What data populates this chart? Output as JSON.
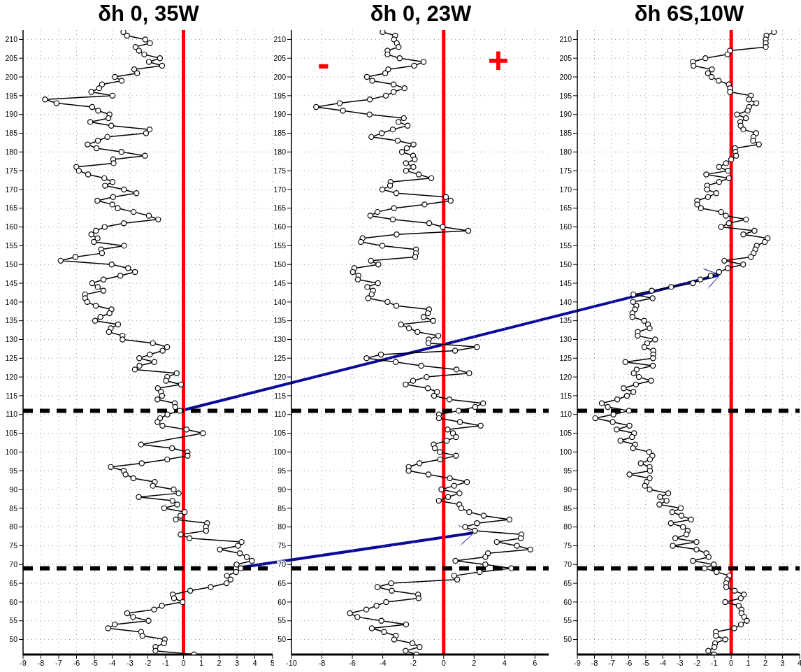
{
  "chart_data": [
    {
      "type": "line",
      "title": "δh 0, 35W",
      "xlim": [
        -9,
        5
      ],
      "xticks": [
        -9,
        -8,
        -7,
        -6,
        -5,
        -4,
        -3,
        -2,
        -1,
        0,
        1,
        2,
        3,
        4,
        5
      ],
      "ylim": [
        46,
        212.5
      ],
      "yticks": [
        50,
        55,
        60,
        65,
        70,
        75,
        80,
        85,
        90,
        95,
        100,
        105,
        110,
        115,
        120,
        125,
        130,
        135,
        140,
        145,
        150,
        155,
        160,
        165,
        170,
        175,
        180,
        185,
        190,
        195,
        200,
        205,
        210
      ],
      "grid": true,
      "marker": "circle",
      "ref_lines": [
        {
          "axis": "x",
          "value": 0,
          "color": "#ff0000"
        },
        {
          "axis": "y",
          "value": 111,
          "color": "#000000",
          "line_style": "dashed"
        },
        {
          "axis": "y",
          "value": 69,
          "color": "#000000",
          "line_style": "dashed"
        }
      ],
      "series": [
        {
          "color": "#000000",
          "x": [
            -3.37,
            -3.17,
            -2.14,
            -1.88,
            -2.69,
            -2.5,
            -2.2,
            -1.32,
            -1.94,
            -1.2,
            -2.76,
            -2.6,
            -3.85,
            -3.47,
            -4.57,
            -4.73,
            -5.17,
            -3.98,
            -7.77,
            -7.12,
            -5.12,
            -4.79,
            -4.15,
            -4.21,
            -5.23,
            -4.05,
            -1.9,
            -2.1,
            -4.27,
            -4.8,
            -5.38,
            -4.88,
            -3.48,
            -2.16,
            -3.94,
            -3.92,
            -6.01,
            -5.87,
            -5.35,
            -4.44,
            -3.98,
            -4.4,
            -3.34,
            -2.64,
            -3.95,
            -4.83,
            -3.99,
            -3.69,
            -2.8,
            -1.94,
            -1.42,
            -3.35,
            -4.42,
            -4.91,
            -5.17,
            -4.82,
            -5.03,
            -3.33,
            -4.62,
            -4.57,
            -6.06,
            -6.89,
            -4.03,
            -3.11,
            -2.72,
            -3.54,
            -4.49,
            -5.12,
            -4.81,
            -4.49,
            -5.52,
            -5.51,
            -5.4,
            -4.92,
            -4.04,
            -4.15,
            -4.66,
            -4.96,
            -3.67,
            -4.08,
            -4.18,
            -3.42,
            -3.42,
            -1.72,
            -0.92,
            -1.17,
            -1.89,
            -2.48,
            -1.63,
            -2.47,
            -2.73,
            -0.38,
            -0.91,
            -0.98,
            -0.14,
            -1.44,
            -1.26,
            -1.2,
            -1.46,
            -0.49,
            -0.46,
            -0.2,
            -0.9,
            -1.31,
            -1.46,
            -1.18,
            0.17,
            1.09,
            null,
            -2.38,
            -0.64,
            0.23,
            0.23,
            -0.91,
            -2.34,
            -4.08,
            -3.35,
            -3.25,
            -2.81,
            -1.61,
            -1.72,
            -0.55,
            -0.27,
            -2.51,
            -0.62,
            -0.35,
            -1.08,
            0.07,
            -0.17,
            -0.43,
            1.33,
            1.26,
            1.27,
            -0.16,
            0.34,
            3.26,
            3.06,
            2.04,
            3.16,
            3.55,
            3.84,
            2.98,
            3.22,
            2.95,
            2.44,
            2.64,
            2.42,
            1.53,
            0.38,
            -0.6,
            -0.53,
            -0.05,
            -1.21,
            -1.65,
            -3.16,
            -2.83,
            -1.96,
            -3.86,
            -4.23,
            -2.38,
            -2.3,
            -1.05,
            -1.09,
            -1.57,
            -1.57,
            0.59
          ],
          "values": [
            212,
            211,
            210,
            209,
            208,
            207,
            206,
            205,
            204,
            203,
            202,
            201,
            200,
            199,
            198,
            197,
            196,
            195,
            194,
            193,
            192,
            191,
            190,
            189,
            188,
            187,
            186,
            185,
            184,
            183,
            182,
            181,
            180,
            179,
            178,
            177,
            176,
            175,
            174,
            173,
            172,
            171,
            170,
            169,
            168,
            167,
            166,
            165,
            164,
            163,
            162,
            161,
            160,
            159,
            158,
            157,
            156,
            155,
            154,
            153,
            152,
            151,
            150,
            149,
            148,
            147,
            146,
            145,
            144,
            143,
            142,
            141,
            140,
            139,
            138,
            137,
            136,
            135,
            134,
            133,
            132,
            131,
            130,
            129,
            128,
            127,
            126,
            125,
            124,
            123,
            122,
            121,
            120,
            119,
            118,
            117,
            116,
            115,
            114,
            113,
            112,
            111,
            110,
            109,
            108,
            107,
            106,
            105,
            null,
            102,
            101,
            100,
            99,
            98,
            97,
            96,
            95,
            94,
            93,
            92,
            91,
            90,
            89,
            88,
            87,
            86,
            85,
            84,
            83,
            82,
            81,
            80,
            79,
            78,
            77,
            76,
            75,
            74,
            73,
            72,
            71,
            70,
            69,
            68,
            67,
            66,
            65,
            64,
            63,
            62,
            61,
            60,
            59,
            58,
            57,
            56,
            55,
            54,
            53,
            52,
            51,
            50,
            49,
            48,
            47,
            46
          ]
        }
      ]
    },
    {
      "type": "line",
      "title": "δh 0, 23W",
      "xlim": [
        -10,
        6.9
      ],
      "xticks": [
        -10,
        -8,
        -6,
        -4,
        -2,
        0,
        2,
        4,
        6
      ],
      "ylim": [
        46,
        212.5
      ],
      "yticks": [
        50,
        55,
        60,
        65,
        70,
        75,
        80,
        85,
        90,
        95,
        100,
        105,
        110,
        115,
        120,
        125,
        130,
        135,
        140,
        145,
        150,
        155,
        160,
        165,
        170,
        175,
        180,
        185,
        190,
        195,
        200,
        205,
        210
      ],
      "grid": true,
      "marker": "circle",
      "annotations": [
        "-",
        "+"
      ],
      "ref_lines": [
        {
          "axis": "x",
          "value": 0,
          "color": "#ff0000"
        },
        {
          "axis": "y",
          "value": 111,
          "color": "#000000",
          "line_style": "dashed"
        },
        {
          "axis": "y",
          "value": 69,
          "color": "#000000",
          "line_style": "dashed"
        }
      ],
      "series": [
        {
          "color": "#000000",
          "x": [
            -4.01,
            -3.19,
            -3.26,
            -3.08,
            -2.96,
            -3.69,
            -3.69,
            -2.89,
            -1.32,
            -1.94,
            -3.64,
            -3.84,
            -5.04,
            -4.69,
            -3.29,
            -2.57,
            -3.29,
            -3.8,
            -4.85,
            -6.83,
            -8.38,
            -6.62,
            -4.87,
            -2.62,
            -2.97,
            -2.37,
            -3.34,
            -4.07,
            -4.75,
            -3.02,
            -1.98,
            -2.42,
            -2.74,
            -2.01,
            -1.9,
            -2.48,
            -1.99,
            -2.47,
            -1.64,
            -0.81,
            -3.49,
            -3.52,
            -4.03,
            -3.11,
            0.15,
            0.46,
            -1.26,
            -3.26,
            -4.35,
            -4.82,
            -3.34,
            -0.95,
            -0.06,
            1.62,
            -3.09,
            -5.33,
            -5.44,
            -4.03,
            -1.82,
            -1.82,
            -1.87,
            -4.78,
            -4.29,
            -5.87,
            -5.97,
            -5.6,
            -5.64,
            -4.32,
            -5.02,
            -4.64,
            -4.73,
            -4.96,
            -3.69,
            -3.11,
            -0.96,
            -1.04,
            -1.32,
            -0.69,
            -2.8,
            -2.28,
            -1.72,
            -0.35,
            -0.98,
            -1.0,
            2.19,
            0.75,
            -4.12,
            -5.07,
            -3.15,
            -1.47,
            0.84,
            1.68,
            -1.12,
            -2.01,
            -2.5,
            -1.04,
            -0.44,
            -0.63,
            0.38,
            2.59,
            2.07,
            0.98,
            -0.31,
            -0.31,
            1.07,
            2.43,
            0.26,
            0.61,
            0.81,
            0.2,
            -0.66,
            -0.58,
            -0.25,
            0.81,
            -0.23,
            -1.59,
            -2.3,
            -2.3,
            -1.0,
            0.4,
            1.53,
            0.69,
            -0.15,
            1.04,
            0.29,
            -0.32,
            1.03,
            1.16,
            1.68,
            2.63,
            4.32,
            2.19,
            1.41,
            2.05,
            5.11,
            5.07,
            3.49,
            4.82,
            5.7,
            2.91,
            2.74,
            0.77,
            2.74,
            4.44,
            2.36,
            0.69,
            0.89,
            -3.45,
            -4.35,
            -3.41,
            -1.68,
            -1.65,
            -3.78,
            -4.41,
            -5.08,
            -6.16,
            -5.67,
            -4.09,
            -2.47,
            -4.72,
            -3.92,
            -3.14,
            -3.25,
            -2.05,
            -1.58,
            -2.5,
            -1.79
          ],
          "values": [
            212,
            211,
            210,
            209,
            208,
            207,
            206,
            205,
            204,
            203,
            202,
            201,
            200,
            199,
            198,
            197,
            196,
            195,
            194,
            193,
            192,
            191,
            190,
            189,
            188,
            187,
            186,
            185,
            184,
            183,
            182,
            181,
            180,
            179,
            178,
            177,
            176,
            175,
            174,
            173,
            172,
            171,
            170,
            169,
            168,
            167,
            166,
            165,
            164,
            163,
            162,
            161,
            160,
            159,
            158,
            157,
            156,
            155,
            154,
            153,
            152,
            151,
            150,
            149,
            148,
            147,
            146,
            145,
            144,
            143,
            142,
            141,
            140,
            139,
            138,
            137,
            136,
            135,
            134,
            133,
            132,
            131,
            130,
            129,
            128,
            127,
            126,
            125,
            124,
            123,
            122,
            121,
            120,
            119,
            118,
            117,
            116,
            115,
            114,
            113,
            112,
            111,
            110,
            109,
            108,
            107,
            106,
            105,
            104,
            103,
            102,
            101,
            100,
            99,
            98,
            97,
            96,
            95,
            94,
            93,
            92,
            91,
            90,
            89,
            88,
            87,
            86,
            85,
            84,
            83,
            82,
            81,
            80,
            79,
            78,
            77,
            76,
            75,
            74,
            73,
            72,
            71,
            70,
            69,
            68,
            67,
            66,
            65,
            64,
            63,
            62,
            61,
            60,
            59,
            58,
            57,
            56,
            55,
            54,
            53,
            52,
            51,
            50,
            49,
            48,
            47,
            46
          ]
        }
      ]
    },
    {
      "type": "line",
      "title": "δh 6S,10W",
      "xlim": [
        -9,
        4
      ],
      "xticks": [
        -9,
        -8,
        -7,
        -6,
        -5,
        -4,
        -3,
        -2,
        -1,
        0,
        1,
        2,
        3,
        4
      ],
      "ylim": [
        46,
        212.5
      ],
      "yticks": [
        50,
        55,
        60,
        65,
        70,
        75,
        80,
        85,
        90,
        95,
        100,
        105,
        110,
        115,
        120,
        125,
        130,
        135,
        140,
        145,
        150,
        155,
        160,
        165,
        170,
        175,
        180,
        185,
        190,
        195,
        200,
        205,
        210
      ],
      "grid": true,
      "marker": "circle",
      "ref_lines": [
        {
          "axis": "x",
          "value": 0,
          "color": "#ff0000"
        },
        {
          "axis": "y",
          "value": 111,
          "color": "#000000",
          "line_style": "dashed"
        },
        {
          "axis": "y",
          "value": 69,
          "color": "#000000",
          "line_style": "dashed"
        }
      ],
      "series": [
        {
          "color": "#000000",
          "x": [
            2.5,
            2.06,
            2.02,
            2.02,
            2.02,
            -0.07,
            -0.22,
            -1.51,
            -2.24,
            -2.21,
            -1.13,
            -1.36,
            -1.15,
            -0.74,
            -0.14,
            -0.07,
            -0.07,
            1.15,
            1.04,
            1.47,
            1.05,
            0.96,
            0.34,
            0.86,
            0.53,
            0.55,
            0.71,
            1.46,
            1.3,
            1.28,
            1.62,
            0.22,
            0.25,
            0.29,
            0.0,
            -0.3,
            -0.71,
            -0.19,
            -1.46,
            -0.14,
            -0.71,
            -1.41,
            -1.41,
            -0.87,
            -1.36,
            -1.99,
            -1.99,
            -1.77,
            -0.59,
            -0.31,
            0.87,
            -0.14,
            -0.59,
            1.36,
            0.71,
            2.13,
            1.96,
            1.49,
            1.41,
            1.31,
            1.15,
            -0.4,
            0.7,
            -0.2,
            -0.71,
            -1.2,
            -1.8,
            -2.24,
            -3.51,
            -4.65,
            -5.72,
            -4.6,
            -5.74,
            -5.55,
            -5.63,
            -5.78,
            -5.78,
            -5.09,
            -4.87,
            -4.77,
            -5.47,
            -5.47,
            -4.45,
            -4.91,
            -5.08,
            -4.56,
            -4.56,
            -4.57,
            -6.19,
            -4.58,
            -5.53,
            -5.7,
            -5.4,
            -4.69,
            -5.57,
            -6.29,
            -5.72,
            -6.1,
            -6.66,
            -7.57,
            -7.22,
            -5.98,
            -6.89,
            -7.95,
            -6.93,
            -5.95,
            -6.7,
            -5.68,
            -5.8,
            -6.48,
            -5.62,
            -5.74,
            -4.8,
            -4.61,
            -4.75,
            -5.29,
            -4.77,
            -4.75,
            -5.95,
            -4.77,
            -4.95,
            -5.05,
            -4.77,
            -3.68,
            -4.16,
            -3.78,
            -4.2,
            -2.95,
            -3.45,
            -2.91,
            -2.35,
            -3.53,
            -2.82,
            -2.55,
            -2.62,
            -3.27,
            -2.03,
            -3.42,
            -2.03,
            -1.45,
            -1.32,
            -2.24,
            -1.02,
            -1.56,
            -0.86,
            -0.11,
            -0.23,
            -0.29,
            -0.29,
            0.2,
            0.74,
            0.56,
            -0.35,
            0.44,
            0.6,
            0.6,
            0.76,
            0.91,
            0.57,
            0.18,
            -0.9,
            -0.89,
            -0.35,
            -0.94,
            -0.98,
            -1.34,
            -1.0
          ],
          "values": [
            212,
            211,
            210,
            209,
            208,
            207,
            206,
            205,
            204,
            203,
            202,
            201,
            200,
            199,
            198,
            197,
            196,
            195,
            194,
            193,
            192,
            191,
            190,
            189,
            188,
            187,
            186,
            185,
            184,
            183,
            182,
            181,
            180,
            179,
            178,
            177,
            176,
            175,
            174,
            173,
            172,
            171,
            170,
            169,
            168,
            167,
            166,
            165,
            164,
            163,
            162,
            161,
            160,
            159,
            158,
            157,
            156,
            155,
            154,
            153,
            152,
            151,
            150,
            149,
            148,
            147,
            146,
            145,
            144,
            143,
            142,
            141,
            140,
            139,
            138,
            137,
            136,
            135,
            134,
            133,
            132,
            131,
            130,
            129,
            128,
            127,
            126,
            125,
            124,
            123,
            122,
            121,
            120,
            119,
            118,
            117,
            116,
            115,
            114,
            113,
            112,
            111,
            110,
            109,
            108,
            107,
            106,
            105,
            104,
            103,
            102,
            101,
            100,
            99,
            98,
            97,
            96,
            95,
            94,
            93,
            92,
            91,
            90,
            89,
            88,
            87,
            86,
            85,
            84,
            83,
            82,
            81,
            80,
            79,
            78,
            77,
            76,
            75,
            74,
            73,
            72,
            71,
            70,
            69,
            68,
            67,
            66,
            65,
            64,
            63,
            62,
            61,
            60,
            59,
            58,
            57,
            56,
            55,
            54,
            53,
            52,
            51,
            50,
            49,
            48,
            47,
            46
          ]
        }
      ]
    }
  ]
}
